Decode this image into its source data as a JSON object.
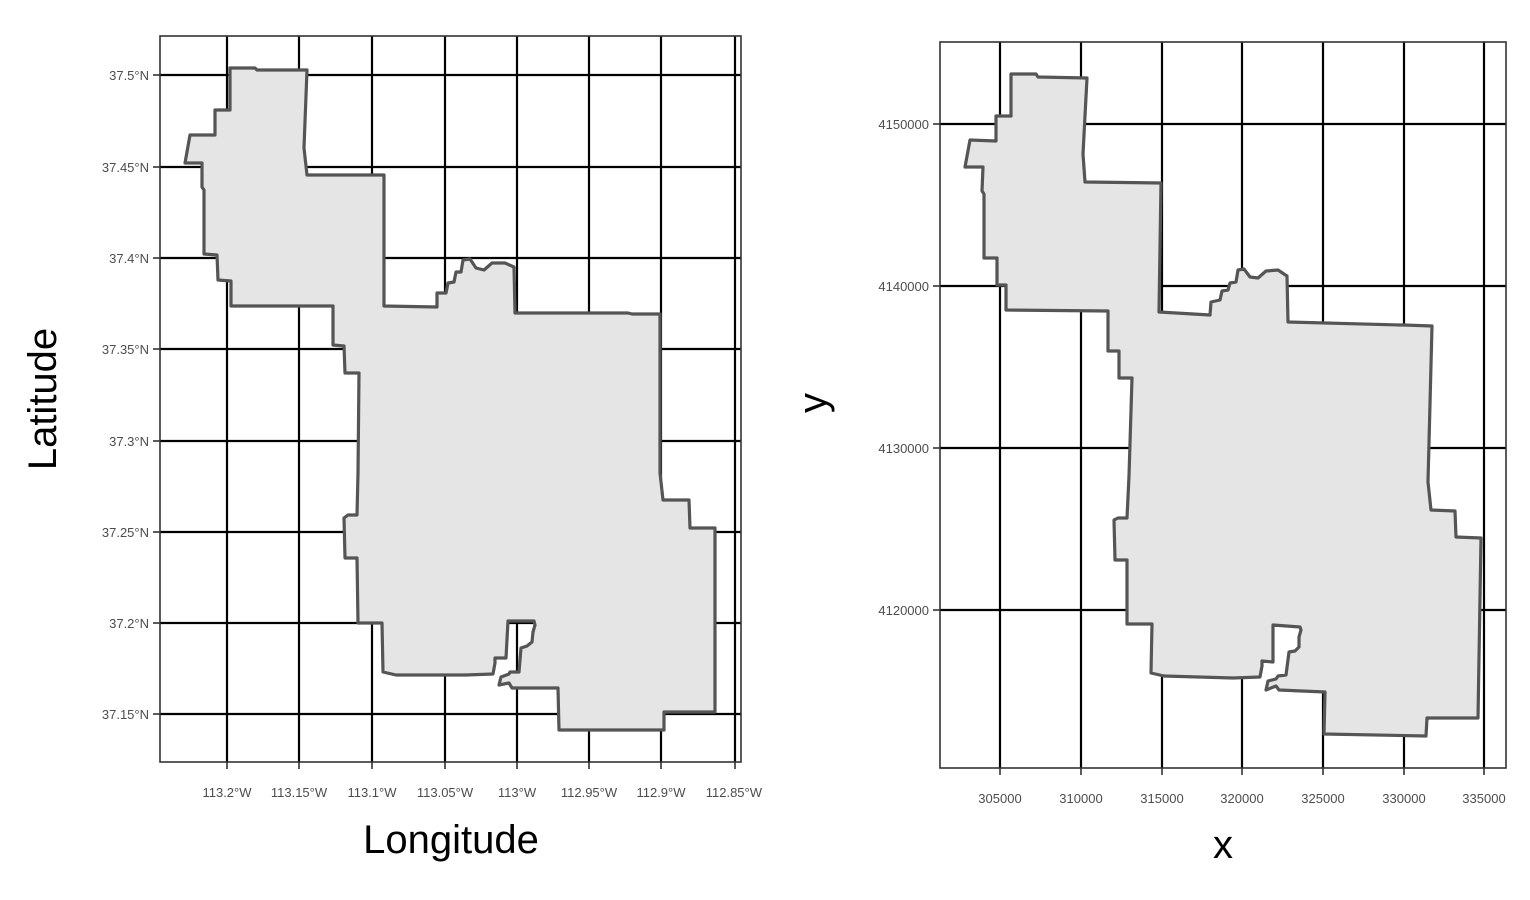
{
  "figure": {
    "left_panel": {
      "type": "map",
      "xlabel": "Longitude",
      "ylabel": "Latitude",
      "x_ticks": [
        "113.2°W",
        "113.15°W",
        "113.1°W",
        "113.05°W",
        "113°W",
        "112.95°W",
        "112.9°W",
        "112.85°W"
      ],
      "y_ticks": [
        "37.5°N",
        "37.45°N",
        "37.4°N",
        "37.35°N",
        "37.3°N",
        "37.25°N",
        "37.2°N",
        "37.15°N"
      ],
      "fill_color": "#e5e5e5",
      "line_color": "#555555"
    },
    "right_panel": {
      "type": "map",
      "xlabel": "x",
      "ylabel": "y",
      "x_ticks": [
        "305000",
        "310000",
        "315000",
        "320000",
        "325000",
        "330000",
        "335000"
      ],
      "y_ticks": [
        "4150000",
        "4140000",
        "4130000",
        "4120000"
      ],
      "fill_color": "#e5e5e5",
      "line_color": "#555555"
    }
  }
}
